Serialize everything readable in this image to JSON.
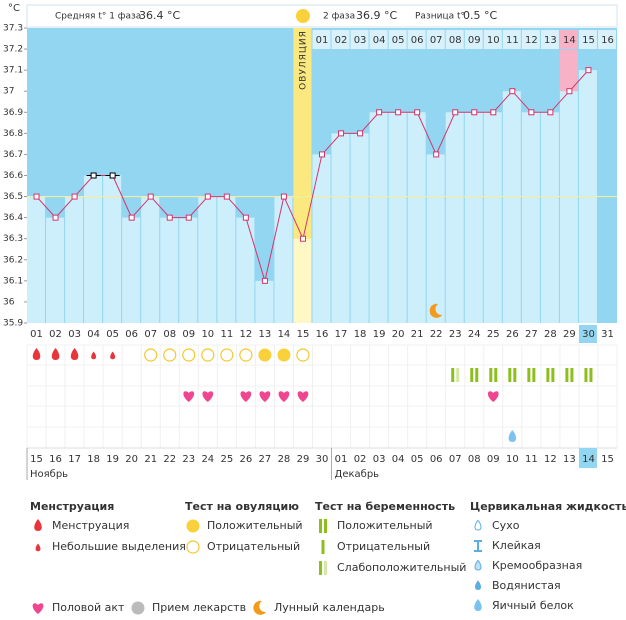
{
  "header": {
    "unit": "°C",
    "phase1_label": "Средняя t° 1 фаза",
    "phase1_avg": "36.4 °C",
    "phase2_label": "2 фаза",
    "phase2_avg": "36.9 °C",
    "diff_label": "Разница t°",
    "diff": "0.5 °C"
  },
  "chart_data": {
    "type": "line",
    "categories": [
      "01",
      "02",
      "03",
      "04",
      "05",
      "06",
      "07",
      "08",
      "09",
      "10",
      "11",
      "12",
      "13",
      "14",
      "15",
      "16",
      "17",
      "18",
      "19",
      "20",
      "21",
      "22",
      "23",
      "24",
      "25",
      "26",
      "27",
      "28",
      "29",
      "30",
      "31"
    ],
    "values": [
      36.5,
      36.4,
      36.5,
      36.6,
      36.6,
      36.4,
      36.5,
      36.4,
      36.4,
      36.5,
      36.5,
      36.4,
      36.1,
      36.5,
      36.3,
      36.7,
      36.8,
      36.8,
      36.9,
      36.9,
      36.9,
      36.7,
      36.9,
      36.9,
      36.9,
      37.0,
      36.9,
      36.9,
      37.0,
      37.1,
      null
    ],
    "ylim": [
      35.9,
      37.3
    ],
    "yticks": [
      37.3,
      37.2,
      37.1,
      37,
      36.9,
      36.8,
      36.7,
      36.6,
      36.5,
      36.4,
      36.3,
      36.2,
      36.1,
      36,
      35.9
    ],
    "color": "#d6336c",
    "coverline": 36.5,
    "black_marker_days": [
      4,
      5
    ],
    "ovulation_day": 15,
    "ovulation_label": "ОВУЛЯЦИЯ",
    "phase2_start": 16,
    "phase2_days": [
      "01",
      "02",
      "03",
      "04",
      "05",
      "06",
      "07",
      "08",
      "09",
      "10",
      "11",
      "12",
      "13",
      "14",
      "15",
      "16"
    ],
    "pink_phase2_day": 14,
    "today": 30,
    "dates": [
      "15",
      "16",
      "17",
      "18",
      "19",
      "20",
      "21",
      "22",
      "23",
      "24",
      "25",
      "26",
      "27",
      "28",
      "29",
      "30",
      "01",
      "02",
      "03",
      "04",
      "05",
      "06",
      "07",
      "08",
      "09",
      "10",
      "11",
      "12",
      "13",
      "14",
      "15"
    ],
    "date_colors": [
      "#333",
      "#333",
      "#e0243c",
      "#e0243c",
      "#333",
      "#333",
      "#333",
      "#333",
      "#333",
      "#e0243c",
      "#e0243c",
      "#333",
      "#333",
      "#333",
      "#333",
      "#333",
      "#e0243c",
      "#e0243c",
      "#333",
      "#333",
      "#333",
      "#333",
      "#333",
      "#e0243c",
      "#e0243c",
      "#333",
      "#333",
      "#333",
      "#333",
      "#333",
      "#e0243c"
    ],
    "months": [
      {
        "label": "Ноябрь",
        "start": 1
      },
      {
        "label": "Декабрь",
        "start": 17
      }
    ]
  },
  "legend": {
    "groups": [
      {
        "title": "Менструация",
        "items": [
          {
            "label": "Менструация",
            "icon": "drop-big",
            "days": [
              1,
              2,
              3
            ]
          },
          {
            "label": "Небольшие выделения",
            "icon": "drop-small",
            "days": [
              4,
              5
            ]
          }
        ]
      },
      {
        "title": "Тест на овуляцию",
        "items": [
          {
            "label": "Положительный",
            "icon": "circle-full",
            "days": [
              13,
              14
            ]
          },
          {
            "label": "Отрицательный",
            "icon": "circle-empty",
            "days": [
              7,
              8,
              9,
              10,
              11,
              12,
              15
            ]
          }
        ]
      },
      {
        "title": "Тест на беременность",
        "items": [
          {
            "label": "Положительный",
            "icon": "bars-pos",
            "days": [
              24,
              25,
              26,
              27,
              28,
              29,
              30
            ]
          },
          {
            "label": "Отрицательный",
            "icon": "bar-neg",
            "days": []
          },
          {
            "label": "Слабоположительный",
            "icon": "bars-weak",
            "days": [
              23
            ]
          }
        ]
      },
      {
        "title": "Цервикальная жидкость",
        "items": [
          {
            "label": "Сухо",
            "icon": "fl-dry",
            "days": []
          },
          {
            "label": "Клейкая",
            "icon": "fl-sticky",
            "days": []
          },
          {
            "label": "Кремообразная",
            "icon": "fl-creamy",
            "days": []
          },
          {
            "label": "Водянистая",
            "icon": "fl-watery",
            "days": []
          },
          {
            "label": "Яичный белок",
            "icon": "fl-egg",
            "days": [
              26
            ]
          }
        ]
      }
    ],
    "extra": [
      {
        "label": "Половой акт",
        "icon": "heart",
        "days": [
          9,
          10,
          12,
          13,
          14,
          15,
          25
        ]
      },
      {
        "label": "Прием лекарств",
        "icon": "pill",
        "days": []
      },
      {
        "label": "Лунный календарь",
        "icon": "moon",
        "days": [
          22
        ]
      }
    ]
  }
}
